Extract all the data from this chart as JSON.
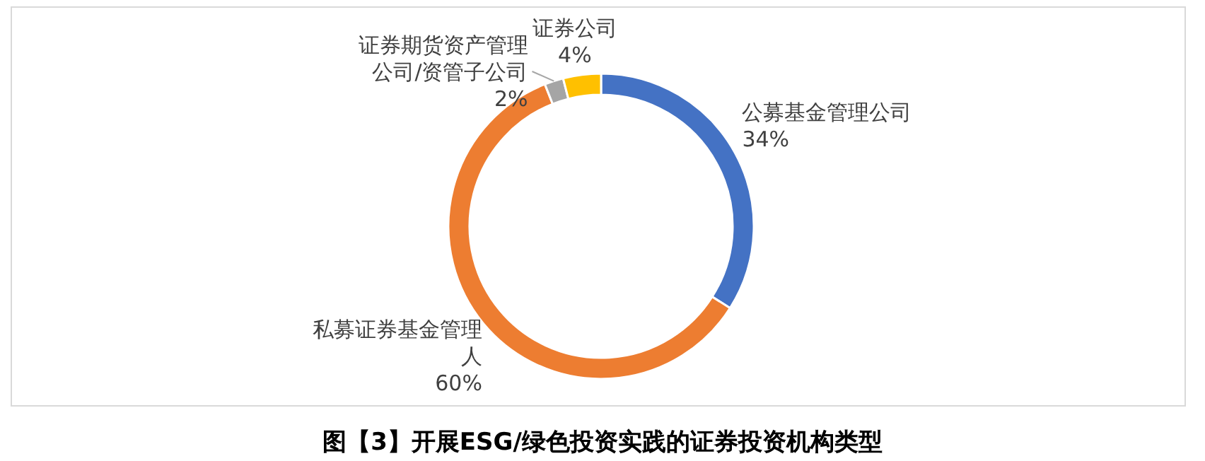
{
  "chart_data": {
    "type": "donut",
    "title": "图【3】开展ESG/绿色投资实践的证券投资机构类型",
    "categories": [
      "公募基金管理公司",
      "私募证券基金管理人",
      "证券期货资产管理公司/资管子公司",
      "证券公司"
    ],
    "values": [
      34,
      60,
      2,
      4
    ],
    "value_labels": [
      "34%",
      "60%",
      "2%",
      "4%"
    ],
    "colors": [
      "#4472c4",
      "#ed7d31",
      "#a5a5a5",
      "#ffc000"
    ],
    "legend": false
  }
}
